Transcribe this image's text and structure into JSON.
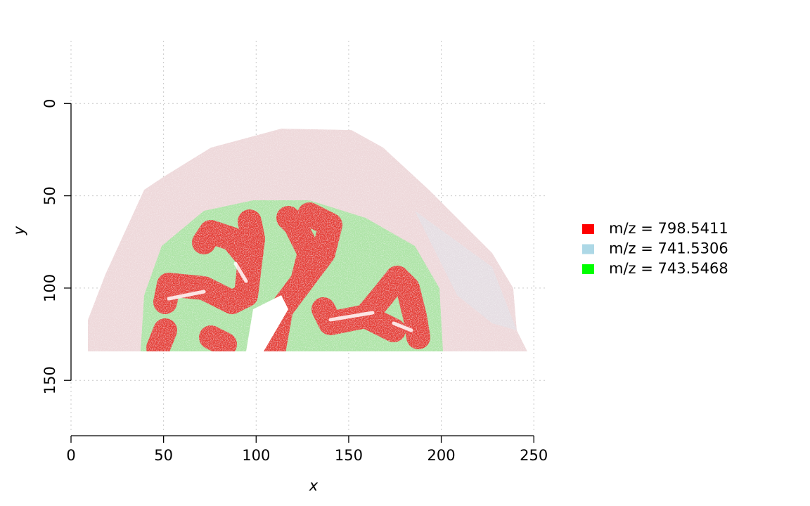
{
  "chart_data": {
    "type": "image",
    "xlabel": "x",
    "ylabel": "y",
    "xlim": [
      0,
      256
    ],
    "ylim": [
      180,
      -34
    ],
    "xticks": [
      0,
      50,
      100,
      150,
      200,
      250
    ],
    "yticks": [
      0,
      50,
      100,
      150
    ],
    "grid": true,
    "legend_position": "right",
    "series": [
      {
        "name": "m/z = 798.5411",
        "color": "#ff0000"
      },
      {
        "name": "m/z = 741.5306",
        "color": "#add8e6"
      },
      {
        "name": "m/z = 743.5468",
        "color": "#00ff00"
      }
    ]
  }
}
